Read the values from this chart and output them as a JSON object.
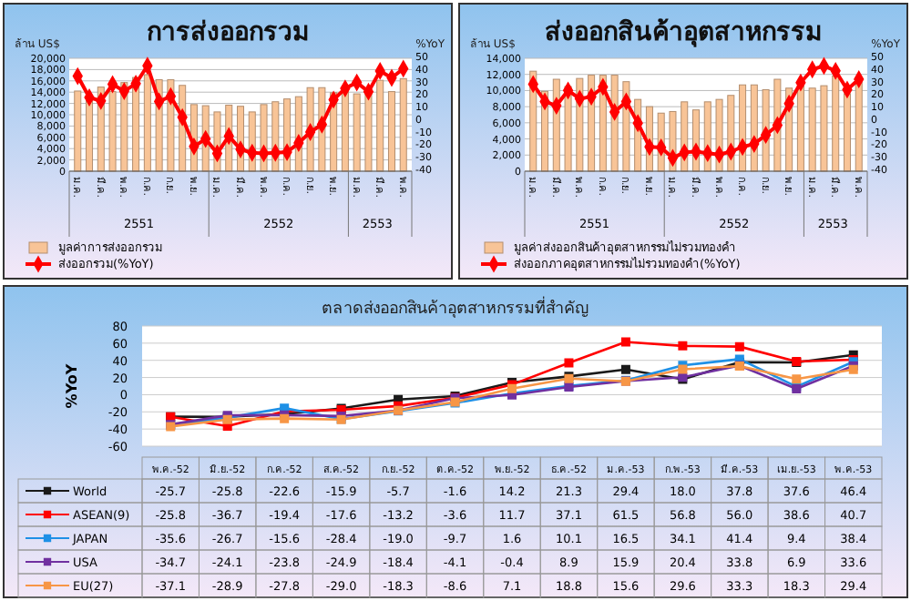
{
  "chart_data": [
    {
      "type": "bar",
      "title": "การส่งออกรวม",
      "ylabel": "ล้าน US$",
      "y2label": "%YoY",
      "categories": [
        "ม.ค.",
        null,
        "มี.ค.",
        null,
        "พ.ค.",
        null,
        "ก.ค.",
        null,
        "ก.ย.",
        null,
        "พ.ย.",
        null,
        "ม.ค.",
        null,
        "มี.ค.",
        null,
        "พ.ค.",
        null,
        "ก.ค.",
        null,
        "ก.ย.",
        null,
        "พ.ย.",
        null,
        "ม.ค.",
        null,
        "มี.ค.",
        null,
        "พ.ค."
      ],
      "series": [
        {
          "name": "มูลค่าการส่งออกรวม",
          "type": "bar",
          "color": "#f8c497",
          "values": [
            14200,
            12900,
            14900,
            14100,
            15700,
            16600,
            17100,
            16200,
            16200,
            15200,
            11800,
            11600,
            10500,
            11700,
            11500,
            10500,
            11800,
            12300,
            12800,
            13200,
            14800,
            14800,
            13900,
            14400,
            13700,
            13900,
            16100,
            14100,
            16400
          ]
        },
        {
          "name": "ส่งออกรวม(%YoY)",
          "type": "line",
          "axis": "y2",
          "color": "#ff0000",
          "values": [
            35.8,
            18.8,
            16,
            29.3,
            23.8,
            29.8,
            44,
            15.6,
            19.7,
            3,
            -20.3,
            -14.3,
            -25.8,
            -12,
            -22.6,
            -25.3,
            -25.8,
            -25.3,
            -24.8,
            -17.5,
            -8.8,
            -2.8,
            17,
            26,
            30.7,
            23.4,
            39.9,
            34.4,
            41.7
          ]
        }
      ],
      "ylim": [
        0,
        20000
      ],
      "yticks": [
        {
          "value": 0,
          "label": "0"
        },
        {
          "value": 2000,
          "label": "2,000"
        },
        {
          "value": 4000,
          "label": "4,000"
        },
        {
          "value": 6000,
          "label": "6,000"
        },
        {
          "value": 8000,
          "label": "8,000"
        },
        {
          "value": 10000,
          "label": "10,000"
        },
        {
          "value": 12000,
          "label": "12,000"
        },
        {
          "value": 14000,
          "label": "14,000"
        },
        {
          "value": 16000,
          "label": "16,000"
        },
        {
          "value": 18000,
          "label": "18,000"
        },
        {
          "value": 20000,
          "label": "20,000"
        }
      ],
      "y2lim": [
        -40,
        50
      ],
      "y2ticks": [
        -40,
        -30,
        -20,
        -10,
        0,
        10,
        20,
        30,
        40,
        50
      ],
      "annotations": [
        "2551",
        "2552",
        "2553"
      ],
      "grid": "y",
      "legend": "bottom",
      "marker": "diamond"
    },
    {
      "type": "bar",
      "title": "ส่งออกสินค้าอุตสาหกรรม",
      "ylabel": "ล้าน US$",
      "y2label": "%YoY",
      "categories": [
        "ม.ค.",
        null,
        "มี.ค.",
        null,
        "พ.ค.",
        null,
        "ก.ค.",
        null,
        "ก.ย.",
        null,
        "พ.ย.",
        null,
        "ม.ค.",
        null,
        "มี.ค.",
        null,
        "พ.ค.",
        null,
        "ก.ค.",
        null,
        "ก.ย.",
        null,
        "พ.ย.",
        null,
        "ม.ค.",
        null,
        "มี.ค.",
        null,
        "พ.ค."
      ],
      "series": [
        {
          "name": "มูลค่าส่งออกสินค้าอุตสาหกรรมไม่รวมทองคำ",
          "type": "bar",
          "color": "#f8c497",
          "values": [
            12400,
            9900,
            11400,
            10500,
            11500,
            11900,
            11900,
            11900,
            11100,
            8900,
            8000,
            7200,
            7400,
            8600,
            7600,
            8600,
            8900,
            9400,
            10700,
            10700,
            10100,
            11400,
            10300,
            10600,
            10300,
            10600,
            11800,
            9600,
            11500
          ]
        },
        {
          "name": "ส่งออกภาคอุตสาหกรรมไม่รวมทองคำ(%YoY)",
          "type": "line",
          "axis": "y2",
          "color": "#ff0000",
          "values": [
            29.4,
            15.6,
            12.2,
            24.4,
            17.8,
            19.4,
            27.2,
            7.2,
            15.6,
            -1.7,
            -20.6,
            -21.1,
            -29.4,
            -25,
            -24.4,
            -25.6,
            -26.7,
            -24.4,
            -20.6,
            -18.3,
            -11.1,
            -3.3,
            13.9,
            30.6,
            41.1,
            43.9,
            40,
            25,
            33.3
          ]
        }
      ],
      "ylim": [
        0,
        14000
      ],
      "yticks": [
        {
          "value": 0,
          "label": "0"
        },
        {
          "value": 2000,
          "label": "2,000"
        },
        {
          "value": 4000,
          "label": "4,000"
        },
        {
          "value": 6000,
          "label": "6,000"
        },
        {
          "value": 8000,
          "label": "8,000"
        },
        {
          "value": 10000,
          "label": "10,000"
        },
        {
          "value": 12000,
          "label": "12,000"
        },
        {
          "value": 14000,
          "label": "14,000"
        }
      ],
      "y2lim": [
        -40,
        50
      ],
      "y2ticks": [
        -40,
        -30,
        -20,
        -10,
        0,
        10,
        20,
        30,
        40,
        50
      ],
      "annotations": [
        "2551",
        "2552",
        "2553"
      ],
      "grid": "y",
      "legend": "bottom",
      "marker": "diamond"
    },
    {
      "type": "line",
      "title": "ตลาดส่งออกสินค้าอุตสาหกรรมที่สำคัญ",
      "ylabel": "%YoY",
      "categories": [
        "พ.ค.-52",
        "มิ.ย.-52",
        "ก.ค.-52",
        "ส.ค.-52",
        "ก.ย.-52",
        "ต.ค.-52",
        "พ.ย.-52",
        "ธ.ค.-52",
        "ม.ค.-53",
        "ก.พ.-53",
        "มี.ค.-53",
        "เม.ย.-53",
        "พ.ค.-53"
      ],
      "series": [
        {
          "name": "World",
          "color": "#1a1a1a",
          "values": [
            -25.7,
            -25.8,
            -22.6,
            -15.9,
            -5.7,
            -1.6,
            14.2,
            21.3,
            29.4,
            18.0,
            37.8,
            37.6,
            46.4
          ],
          "value_labels": [
            "-25.7",
            "-25.8",
            "-22.6",
            "-15.9",
            "-5.7",
            "-1.6",
            "14.2",
            "21.3",
            "29.4",
            "18.0",
            "37.8",
            "37.6",
            "46.4"
          ]
        },
        {
          "name": "ASEAN(9)",
          "color": "#ff0000",
          "values": [
            -25.8,
            -36.7,
            -19.4,
            -17.6,
            -13.2,
            -3.6,
            11.7,
            37.1,
            61.5,
            56.8,
            56.0,
            38.6,
            40.7
          ],
          "value_labels": [
            "-25.8",
            "-36.7",
            "-19.4",
            "-17.6",
            "-13.2",
            "-3.6",
            "11.7",
            "37.1",
            "61.5",
            "56.8",
            "56.0",
            "38.6",
            "40.7"
          ]
        },
        {
          "name": "JAPAN",
          "color": "#1e90e6",
          "values": [
            -35.6,
            -26.7,
            -15.6,
            -28.4,
            -19.0,
            -9.7,
            1.6,
            10.1,
            16.5,
            34.1,
            41.4,
            9.4,
            38.4
          ],
          "value_labels": [
            "-35.6",
            "-26.7",
            "-15.6",
            "-28.4",
            "-19.0",
            "-9.7",
            "1.6",
            "10.1",
            "16.5",
            "34.1",
            "41.4",
            "9.4",
            "38.4"
          ]
        },
        {
          "name": "USA",
          "color": "#7030a0",
          "values": [
            -34.7,
            -24.1,
            -23.8,
            -24.9,
            -18.4,
            -4.1,
            -0.4,
            8.9,
            15.9,
            20.4,
            33.8,
            6.9,
            33.6
          ],
          "value_labels": [
            "-34.7",
            "-24.1",
            "-23.8",
            "-24.9",
            "-18.4",
            "-4.1",
            "-0.4",
            "8.9",
            "15.9",
            "20.4",
            "33.8",
            "6.9",
            "33.6"
          ]
        },
        {
          "name": "EU(27)",
          "color": "#f79646",
          "values": [
            -37.1,
            -28.9,
            -27.8,
            -29.0,
            -18.3,
            -8.6,
            7.1,
            18.8,
            15.6,
            29.6,
            33.3,
            18.3,
            29.4
          ],
          "value_labels": [
            "-37.1",
            "-28.9",
            "-27.8",
            "-29.0",
            "-18.3",
            "-8.6",
            "7.1",
            "18.8",
            "15.6",
            "29.6",
            "33.3",
            "18.3",
            "29.4"
          ]
        }
      ],
      "ylim": [
        -60,
        80
      ],
      "yticks": [
        -60,
        -40,
        -20,
        0,
        20,
        40,
        60,
        80
      ],
      "grid": "y",
      "legend": "bottom left",
      "marker": "square"
    }
  ]
}
